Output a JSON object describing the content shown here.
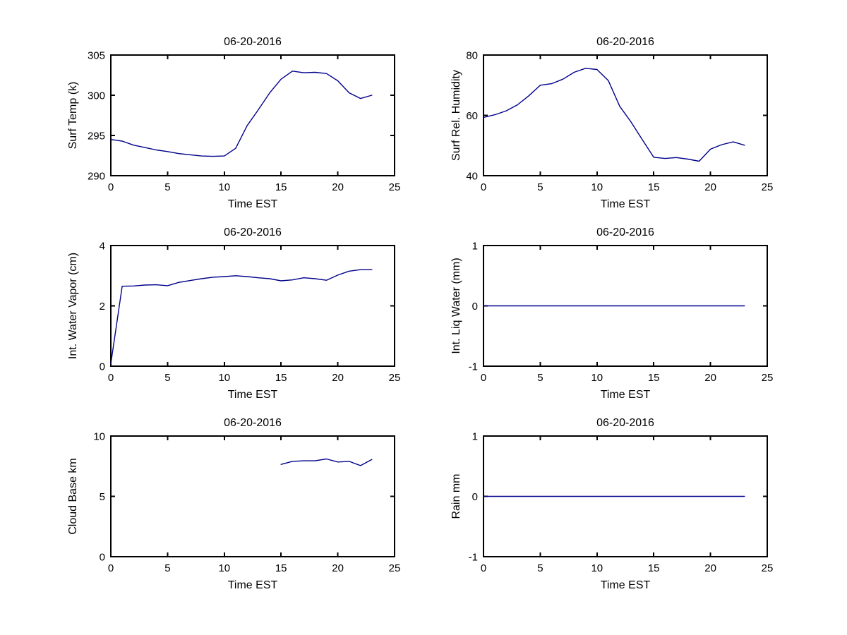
{
  "figure": {
    "background": "#ffffff",
    "axis_color": "#000000",
    "line_color": "#00008B",
    "text_color": "#000000"
  },
  "chart_data": [
    {
      "id": "surf-temp",
      "type": "line",
      "title": "06-20-2016",
      "xlabel": "Time EST",
      "ylabel": "Surf Temp (k)",
      "xlim": [
        0,
        25
      ],
      "ylim": [
        290,
        305
      ],
      "xticks": [
        0,
        5,
        10,
        15,
        20,
        25
      ],
      "yticks": [
        290,
        295,
        300,
        305
      ],
      "grid": false,
      "x": [
        0,
        1,
        2,
        3,
        4,
        5,
        6,
        7,
        8,
        9,
        10,
        11,
        12,
        13,
        14,
        15,
        16,
        17,
        18,
        19,
        20,
        21,
        22,
        23
      ],
      "y": [
        294.5,
        294.3,
        293.8,
        293.5,
        293.2,
        293.0,
        292.75,
        292.6,
        292.45,
        292.4,
        292.45,
        293.4,
        296.2,
        298.2,
        300.3,
        302.0,
        303.0,
        302.8,
        302.85,
        302.7,
        301.8,
        300.3,
        299.6,
        300.0
      ]
    },
    {
      "id": "rel-humidity",
      "type": "line",
      "title": "06-20-2016",
      "xlabel": "Time EST",
      "ylabel": "Surf Rel. Humidity",
      "xlim": [
        0,
        25
      ],
      "ylim": [
        40,
        80
      ],
      "xticks": [
        0,
        5,
        10,
        15,
        20,
        25
      ],
      "yticks": [
        40,
        60,
        80
      ],
      "grid": false,
      "x": [
        0,
        1,
        2,
        3,
        4,
        5,
        6,
        7,
        8,
        9,
        10,
        11,
        12,
        13,
        14,
        15,
        16,
        17,
        18,
        19,
        20,
        21,
        22,
        23
      ],
      "y": [
        59.3,
        60.2,
        61.5,
        63.5,
        66.5,
        70.0,
        70.5,
        72.0,
        74.3,
        75.6,
        75.2,
        71.5,
        63.0,
        57.8,
        51.9,
        46.1,
        45.7,
        46.0,
        45.5,
        44.8,
        48.8,
        50.3,
        51.2,
        50.1
      ]
    },
    {
      "id": "water-vapor",
      "type": "line",
      "title": "06-20-2016",
      "xlabel": "Time EST",
      "ylabel": "Int. Water Vapor (cm)",
      "xlim": [
        0,
        25
      ],
      "ylim": [
        0,
        4
      ],
      "xticks": [
        0,
        5,
        10,
        15,
        20,
        25
      ],
      "yticks": [
        0,
        2,
        4
      ],
      "grid": false,
      "x": [
        0,
        1,
        2,
        3,
        4,
        5,
        6,
        7,
        8,
        9,
        10,
        11,
        12,
        13,
        14,
        15,
        16,
        17,
        18,
        19,
        20,
        21,
        22,
        23
      ],
      "y": [
        0.08,
        2.65,
        2.66,
        2.69,
        2.7,
        2.67,
        2.78,
        2.84,
        2.9,
        2.95,
        2.97,
        3.0,
        2.97,
        2.93,
        2.9,
        2.83,
        2.86,
        2.93,
        2.9,
        2.85,
        3.02,
        3.15,
        3.2,
        3.2
      ]
    },
    {
      "id": "liq-water",
      "type": "line",
      "title": "06-20-2016",
      "xlabel": "Time EST",
      "ylabel": "Int. Liq Water (mm)",
      "xlim": [
        0,
        25
      ],
      "ylim": [
        -1,
        1
      ],
      "xticks": [
        0,
        5,
        10,
        15,
        20,
        25
      ],
      "yticks": [
        -1,
        0,
        1
      ],
      "grid": false,
      "x": [
        0,
        1,
        2,
        3,
        4,
        5,
        6,
        7,
        8,
        9,
        10,
        11,
        12,
        13,
        14,
        15,
        16,
        17,
        18,
        19,
        20,
        21,
        22,
        23
      ],
      "y": [
        0,
        0,
        0,
        0,
        0,
        0,
        0,
        0,
        0,
        0,
        0,
        0,
        0,
        0,
        0,
        0,
        0,
        0,
        0,
        0,
        0,
        0,
        0,
        0
      ]
    },
    {
      "id": "cloud-base",
      "type": "line",
      "title": "06-20-2016",
      "xlabel": "Time EST",
      "ylabel": "Cloud Base km",
      "xlim": [
        0,
        25
      ],
      "ylim": [
        0,
        10
      ],
      "xticks": [
        0,
        5,
        10,
        15,
        20,
        25
      ],
      "yticks": [
        0,
        5,
        10
      ],
      "grid": false,
      "x": [
        15,
        16,
        17,
        18,
        19,
        20,
        21,
        22,
        23
      ],
      "y": [
        7.65,
        7.9,
        7.95,
        7.95,
        8.1,
        7.85,
        7.9,
        7.55,
        8.05
      ]
    },
    {
      "id": "rain",
      "type": "line",
      "title": "06-20-2016",
      "xlabel": "Time EST",
      "ylabel": "Rain mm",
      "xlim": [
        0,
        25
      ],
      "ylim": [
        -1,
        1
      ],
      "xticks": [
        0,
        5,
        10,
        15,
        20,
        25
      ],
      "yticks": [
        -1,
        0,
        1
      ],
      "grid": false,
      "x": [
        0,
        1,
        2,
        3,
        4,
        5,
        6,
        7,
        8,
        9,
        10,
        11,
        12,
        13,
        14,
        15,
        16,
        17,
        18,
        19,
        20,
        21,
        22,
        23
      ],
      "y": [
        0,
        0,
        0,
        0,
        0,
        0,
        0,
        0,
        0,
        0,
        0,
        0,
        0,
        0,
        0,
        0,
        0,
        0,
        0,
        0,
        0,
        0,
        0,
        0
      ]
    }
  ]
}
